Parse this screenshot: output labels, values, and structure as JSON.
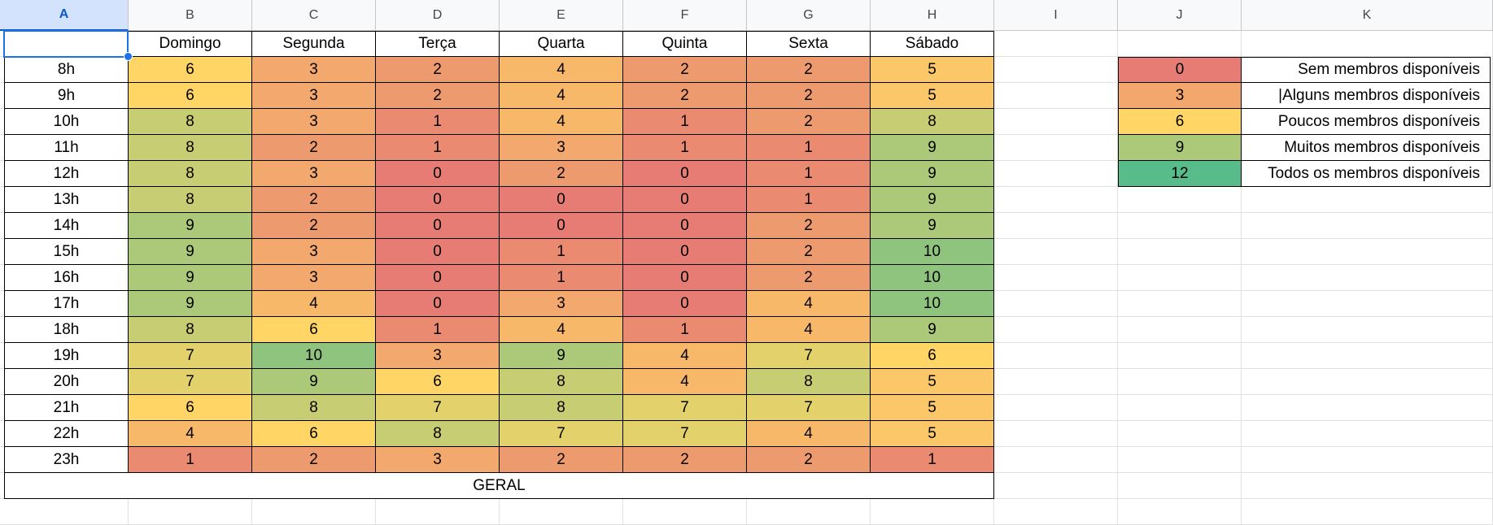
{
  "columns": [
    "A",
    "B",
    "C",
    "D",
    "E",
    "F",
    "G",
    "H",
    "I",
    "J",
    "K"
  ],
  "selected_column": "A",
  "selected_cell_value": "",
  "days": [
    "Domingo",
    "Segunda",
    "Terça",
    "Quarta",
    "Quinta",
    "Sexta",
    "Sábado"
  ],
  "schedule": [
    {
      "hour": "8h",
      "values": [
        6,
        3,
        2,
        4,
        2,
        2,
        5
      ]
    },
    {
      "hour": "9h",
      "values": [
        6,
        3,
        2,
        4,
        2,
        2,
        5
      ]
    },
    {
      "hour": "10h",
      "values": [
        8,
        3,
        1,
        4,
        1,
        2,
        8
      ]
    },
    {
      "hour": "11h",
      "values": [
        8,
        2,
        1,
        3,
        1,
        1,
        9
      ]
    },
    {
      "hour": "12h",
      "values": [
        8,
        3,
        0,
        2,
        0,
        1,
        9
      ]
    },
    {
      "hour": "13h",
      "values": [
        8,
        2,
        0,
        0,
        0,
        1,
        9
      ]
    },
    {
      "hour": "14h",
      "values": [
        9,
        2,
        0,
        0,
        0,
        2,
        9
      ]
    },
    {
      "hour": "15h",
      "values": [
        9,
        3,
        0,
        1,
        0,
        2,
        10
      ]
    },
    {
      "hour": "16h",
      "values": [
        9,
        3,
        0,
        1,
        0,
        2,
        10
      ]
    },
    {
      "hour": "17h",
      "values": [
        9,
        4,
        0,
        3,
        0,
        4,
        10
      ]
    },
    {
      "hour": "18h",
      "values": [
        8,
        6,
        1,
        4,
        1,
        4,
        9
      ]
    },
    {
      "hour": "19h",
      "values": [
        7,
        10,
        3,
        9,
        4,
        7,
        6
      ]
    },
    {
      "hour": "20h",
      "values": [
        7,
        9,
        6,
        8,
        4,
        8,
        5
      ]
    },
    {
      "hour": "21h",
      "values": [
        6,
        8,
        7,
        8,
        7,
        7,
        5
      ]
    },
    {
      "hour": "22h",
      "values": [
        4,
        6,
        8,
        7,
        7,
        4,
        5
      ]
    },
    {
      "hour": "23h",
      "values": [
        1,
        2,
        3,
        2,
        2,
        2,
        1
      ]
    }
  ],
  "summary_label": "GERAL",
  "legend": [
    {
      "value": "0",
      "label": "Sem membros disponíveis",
      "color": "#e67c73"
    },
    {
      "value": "3",
      "label": "|Alguns membros disponíveis",
      "color": "#f3a76c"
    },
    {
      "value": "6",
      "label": "Poucos membros disponíveis",
      "color": "#ffd666"
    },
    {
      "value": "9",
      "label": "Muitos membros disponíveis",
      "color": "#abc978"
    },
    {
      "value": "12",
      "label": "Todos os membros disponíveis",
      "color": "#57bb8a"
    }
  ],
  "colors": {
    "scale_min": "#e67c73",
    "scale_mid": "#ffd666",
    "scale_max": "#57bb8a",
    "selection": "#1a73e8"
  }
}
